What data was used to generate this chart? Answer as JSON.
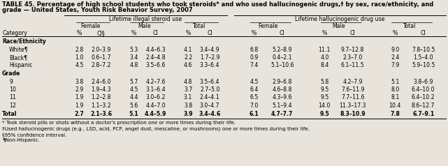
{
  "title_line1": "TABLE 45. Percentage of high school students who took steroids* and who used hallucinogenic drugs,† by sex, race/ethnicity, and",
  "title_line2": "grade — United States, Youth Risk Behavior Survey, 2007",
  "col_group1": "Lifetime illegal steroid use",
  "col_group2": "Lifetime hallucinogenic drug use",
  "sub_groups": [
    "Female",
    "Male",
    "Total",
    "Female",
    "Male",
    "Total"
  ],
  "cat_header": "Category",
  "col_headers": [
    "%",
    "CI§",
    "%",
    "CI",
    "%",
    "CI",
    "%",
    "CI",
    "%",
    "CI",
    "%",
    "CI"
  ],
  "rows": [
    {
      "label": "Race/Ethnicity",
      "section": true,
      "vals": []
    },
    {
      "label": "White¶",
      "section": false,
      "indent": true,
      "bold": false,
      "vals": [
        "2.8",
        "2.0–3.9",
        "5.3",
        "4.4–6.3",
        "4.1",
        "3.4–4.9",
        "6.8",
        "5.2–8.9",
        "11.1",
        "9.7–12.8",
        "9.0",
        "7.8–10.5"
      ]
    },
    {
      "label": "Black¶",
      "section": false,
      "indent": true,
      "bold": false,
      "vals": [
        "1.0",
        "0.6–1.7",
        "3.4",
        "2.4–4.8",
        "2.2",
        "1.7–2.9",
        "0.9",
        "0.4–2.1",
        "4.0",
        "2.3–7.0",
        "2.4",
        "1.5–4.0"
      ]
    },
    {
      "label": "Hispanic",
      "section": false,
      "indent": true,
      "bold": false,
      "vals": [
        "4.5",
        "2.8–7.2",
        "4.8",
        "3.5–6.6",
        "4.6",
        "3.3–6.4",
        "7.4",
        "5.1–10.6",
        "8.4",
        "6.1–11.5",
        "7.9",
        "5.9–10.5"
      ]
    },
    {
      "label": "Grade",
      "section": true,
      "vals": []
    },
    {
      "label": "9",
      "section": false,
      "indent": true,
      "bold": false,
      "vals": [
        "3.8",
        "2.4–6.0",
        "5.7",
        "4.2–7.6",
        "4.8",
        "3.5–6.4",
        "4.5",
        "2.9–6.8",
        "5.8",
        "4.2–7.9",
        "5.1",
        "3.8–6.9"
      ]
    },
    {
      "label": "10",
      "section": false,
      "indent": true,
      "bold": false,
      "vals": [
        "2.9",
        "1.9–4.3",
        "4.5",
        "3.1–6.4",
        "3.7",
        "2.7–5.0",
        "6.4",
        "4.6–8.8",
        "9.5",
        "7.6–11.9",
        "8.0",
        "6.4–10.0"
      ]
    },
    {
      "label": "11",
      "section": false,
      "indent": true,
      "bold": false,
      "vals": [
        "1.9",
        "1.2–2.8",
        "4.4",
        "3.0–6.2",
        "3.1",
        "2.4–4.1",
        "6.5",
        "4.3–9.6",
        "9.5",
        "7.7–11.6",
        "8.1",
        "6.4–10.2"
      ]
    },
    {
      "label": "12",
      "section": false,
      "indent": true,
      "bold": false,
      "vals": [
        "1.9",
        "1.1–3.2",
        "5.6",
        "4.4–7.0",
        "3.8",
        "3.0–4.7",
        "7.0",
        "5.1–9.4",
        "14.0",
        "11.3–17.3",
        "10.4",
        "8.6–12.7"
      ]
    },
    {
      "label": "Total",
      "section": false,
      "indent": false,
      "bold": true,
      "vals": [
        "2.7",
        "2.1–3.6",
        "5.1",
        "4.4–5.9",
        "3.9",
        "3.4–4.6",
        "6.1",
        "4.7–7.7",
        "9.5",
        "8.3–10.9",
        "7.8",
        "6.7–9.1"
      ]
    }
  ],
  "footnotes": [
    "* Took steroid pills or shots without a doctor's prescription one or more times during their life.",
    "†Used hallucinogenic drugs (e.g., LSD, acid, PCP, angel dust, mescaline, or mushrooms) one or more times during their life.",
    "§95% confidence interval.",
    "¶Non-Hispanic."
  ],
  "bg_color": "#e8e4dc"
}
